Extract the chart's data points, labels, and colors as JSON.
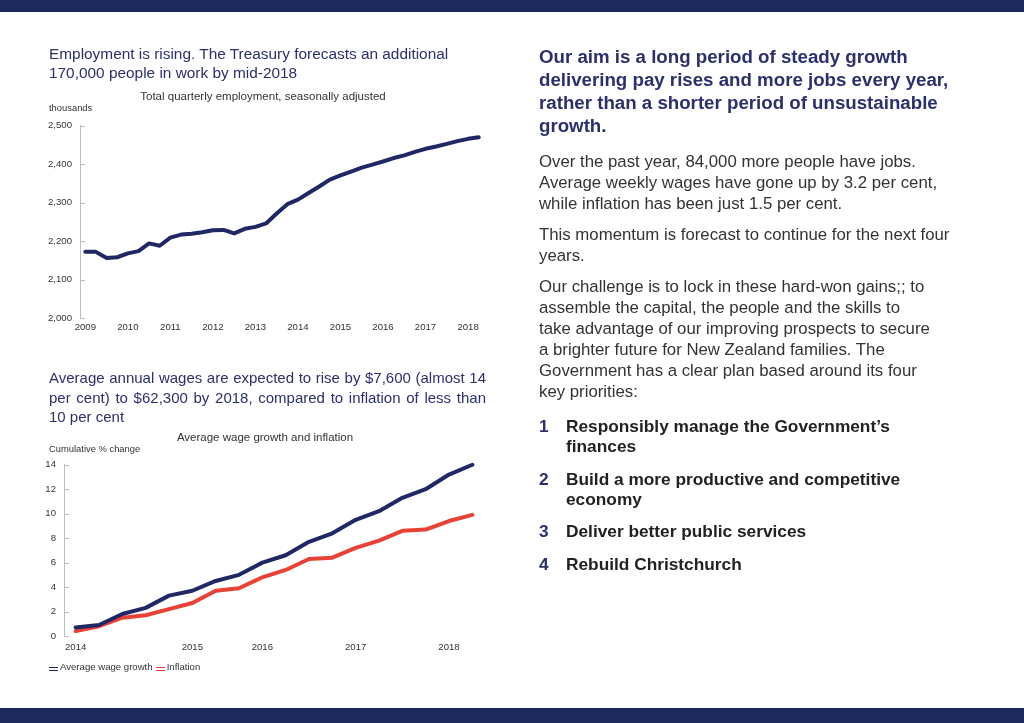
{
  "chart_data": [
    {
      "type": "line",
      "title": "Employment is rising. The Treasury forecasts an additional 170,000 people in work by mid-2018",
      "subtitle": "Total quarterly employment, seasonally adjusted",
      "ylabel": "thousands",
      "categories": [
        "2009",
        null,
        null,
        null,
        "2010",
        null,
        null,
        null,
        "2011",
        null,
        null,
        null,
        "2012",
        null,
        null,
        null,
        "2013",
        null,
        null,
        null,
        "2014",
        null,
        null,
        null,
        "2015",
        null,
        null,
        null,
        "2016",
        null,
        null,
        null,
        "2017",
        null,
        null,
        null,
        "2018",
        null
      ],
      "series": [
        {
          "color": "#1f2864",
          "values": [
            2172,
            2172,
            2156,
            2158,
            2168,
            2174,
            2194,
            2188,
            2209,
            2217,
            2219,
            2223,
            2228,
            2229,
            2220,
            2232,
            2237,
            2246,
            2272,
            2296,
            2308,
            2325,
            2342,
            2360,
            2371,
            2381,
            2391,
            2399,
            2407,
            2416,
            2423,
            2432,
            2440,
            2446,
            2453,
            2460,
            2466,
            2470
          ]
        }
      ],
      "ylim": [
        2000,
        2500
      ],
      "yticks": [
        {
          "value": 2000,
          "label": "2,000"
        },
        {
          "value": 2100,
          "label": "2,100"
        },
        {
          "value": 2200,
          "label": "2,200"
        },
        {
          "value": 2300,
          "label": "2,300"
        },
        {
          "value": 2400,
          "label": "2,400"
        },
        {
          "value": 2500,
          "label": "2,500"
        }
      ]
    },
    {
      "type": "line",
      "title": "Average annual wages are expected to rise by $7,600 (almost 14 per cent) to $62,300 by 2018, compared to inflation of less than 10 per cent",
      "subtitle": "Average wage growth and inflation",
      "ylabel": "Cumulative % change",
      "categories": [
        "2014",
        null,
        null,
        null,
        null,
        "2015",
        null,
        null,
        "2016",
        null,
        null,
        null,
        "2017",
        null,
        null,
        null,
        "2018",
        null
      ],
      "series": [
        {
          "name": "Average wage growth",
          "color": "#1f2864",
          "values": [
            0.7,
            0.9,
            1.8,
            2.3,
            3.3,
            3.7,
            4.5,
            5.0,
            6.0,
            6.6,
            7.7,
            8.4,
            9.5,
            10.2,
            11.3,
            12.0,
            13.2,
            14.0
          ]
        },
        {
          "name": "Inflation",
          "color": "#e84236",
          "values": [
            0.4,
            0.8,
            1.5,
            1.7,
            2.2,
            2.7,
            3.7,
            3.9,
            4.8,
            5.4,
            6.3,
            6.4,
            7.2,
            7.8,
            8.6,
            8.7,
            9.4,
            9.9
          ]
        }
      ],
      "ylim": [
        0,
        14
      ],
      "yticks": [
        0,
        2,
        4,
        6,
        8,
        10,
        12,
        14
      ],
      "legend": "bottom left"
    },
    {
      "type": "other",
      "title": "Our aim is a long period of steady growth delivering pay rises and more jobs every year, rather than a shorter period of unsustainable growth.",
      "annotations": [
        "Over the past year, 84,000 more people have jobs. Average weekly wages have gone up by 3.2 per cent, while inflation has been just 1.5 per cent.",
        "This momentum is forecast to continue for the next four years.",
        "Our challenge is to lock in these hard-won gains;; to\nassemble the capital, the people and the skills to\ntake advantage of our improving prospects to secure\na brighter future for New Zealand families. The\nGovernment has a clear plan based around its four\nkey priorities:",
        "1 Responsibly manage the Government’s finances",
        "2 Build a more productive and competitive economy",
        "3 Deliver better public services",
        "4 Rebuild Christchurch"
      ]
    }
  ]
}
